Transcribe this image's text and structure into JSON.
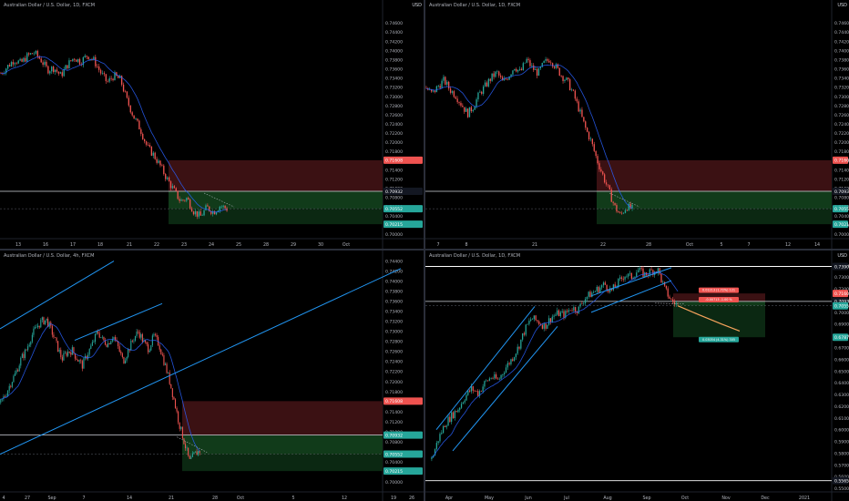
{
  "colors": {
    "background": "#000000",
    "up": "#26a69a",
    "down": "#ef5350",
    "ma": "#2962ff",
    "channel": "#2196f3",
    "stop_zone": "#3b1113",
    "target_zone": "#113b1a",
    "target_zone_dark": "#0b2812",
    "projection": "#f7a35c"
  },
  "currency_label": "USD",
  "chart_data": [
    {
      "type": "candlestick",
      "title": "Australian Dollar / U.S. Dollar, 1D, FXCM",
      "ylim": [
        0.699,
        0.749
      ],
      "y_ticks": [
        "0.74600",
        "0.74400",
        "0.74200",
        "0.74000",
        "0.73800",
        "0.73600",
        "0.73400",
        "0.73200",
        "0.73000",
        "0.72800",
        "0.72600",
        "0.72400",
        "0.72200",
        "0.72000",
        "0.71800",
        "0.71600",
        "0.71400",
        "0.71200",
        "0.71000",
        "0.70800",
        "0.70600",
        "0.70400",
        "0.70200",
        "0.70000",
        "0.69800"
      ],
      "x_ticks": [
        "13",
        "16",
        "17",
        "18",
        "21",
        "22",
        "23",
        "24",
        "25",
        "28",
        "29",
        "30",
        "Oct"
      ],
      "price_tags": [
        {
          "label": "0.71608",
          "value": 0.71608,
          "color": "#ef5350"
        },
        {
          "label": "0.70932",
          "value": 0.70932,
          "color": "#131722"
        },
        {
          "label": "0.70552",
          "value": 0.70552,
          "color": "#26a69a"
        },
        {
          "label": "0.70215",
          "value": 0.70215,
          "color": "#26a69a"
        }
      ],
      "position": {
        "stop": 0.71608,
        "entry": 0.70932,
        "target": 0.70215,
        "last": 0.70552
      },
      "trend": [
        0.735,
        0.7365,
        0.738,
        0.7372,
        0.7388,
        0.7395,
        0.738,
        0.7358,
        0.7362,
        0.7345,
        0.7368,
        0.7385,
        0.7375,
        0.739,
        0.7378,
        0.7352,
        0.733,
        0.7345,
        0.7336,
        0.729,
        0.7255,
        0.7228,
        0.719,
        0.7172,
        0.7148,
        0.712,
        0.7096,
        0.7072,
        0.7078,
        0.705,
        0.7038,
        0.7058,
        0.7048,
        0.7062,
        0.7055
      ]
    },
    {
      "type": "candlestick",
      "title": "Australian Dollar / U.S. Dollar, 1D, FXCM",
      "ylim": [
        0.699,
        0.749
      ],
      "y_ticks": [
        "0.74600",
        "0.74400",
        "0.74200",
        "0.74000",
        "0.73800",
        "0.73600",
        "0.73400",
        "0.73200",
        "0.73000",
        "0.72800",
        "0.72600",
        "0.72400",
        "0.72200",
        "0.72000",
        "0.71800",
        "0.71600",
        "0.71400",
        "0.71200",
        "0.71000",
        "0.70800",
        "0.70600",
        "0.70400",
        "0.70200",
        "0.70000",
        "0.69800"
      ],
      "x_ticks": [
        "7",
        "8",
        "21",
        "22",
        "28",
        "Oct",
        "5",
        "7",
        "12",
        "14"
      ],
      "price_tags": [
        {
          "label": "0.71608",
          "value": 0.71608,
          "color": "#ef5350"
        },
        {
          "label": "0.70932",
          "value": 0.70932,
          "color": "#131722"
        },
        {
          "label": "0.70552",
          "value": 0.70552,
          "color": "#26a69a"
        },
        {
          "label": "0.70215",
          "value": 0.70215,
          "color": "#26a69a"
        }
      ],
      "position": {
        "stop": 0.71608,
        "entry": 0.70932,
        "target": 0.70215,
        "last": 0.70552
      },
      "trend": [
        0.7318,
        0.7305,
        0.7322,
        0.7335,
        0.7315,
        0.7302,
        0.7282,
        0.7262,
        0.7278,
        0.7305,
        0.7322,
        0.734,
        0.7352,
        0.733,
        0.7345,
        0.7365,
        0.7352,
        0.738,
        0.7362,
        0.735,
        0.7372,
        0.7382,
        0.7364,
        0.7345,
        0.7332,
        0.7305,
        0.727,
        0.7232,
        0.7202,
        0.7162,
        0.7128,
        0.7095,
        0.706,
        0.704,
        0.706,
        0.7055
      ]
    },
    {
      "type": "candlestick",
      "title": "Australian Dollar / U.S. Dollar, 4h, FXCM",
      "ylim": [
        0.698,
        0.745
      ],
      "y_ticks": [
        "0.74400",
        "0.74200",
        "0.74000",
        "0.73800",
        "0.73600",
        "0.73400",
        "0.73200",
        "0.73000",
        "0.72800",
        "0.72600",
        "0.72400",
        "0.72200",
        "0.72000",
        "0.71800",
        "0.71600",
        "0.71400",
        "0.71200",
        "0.71000",
        "0.70800",
        "0.70600",
        "0.70400",
        "0.70200",
        "0.70000",
        "0.69800"
      ],
      "x_ticks": [
        "4",
        "27",
        "Sep",
        "7",
        "14",
        "21",
        "28",
        "Oct",
        "5",
        "12",
        "19",
        "26"
      ],
      "price_tags": [
        {
          "label": "0.71608",
          "value": 0.71608,
          "color": "#ef5350"
        },
        {
          "label": "0.70932",
          "value": 0.70932,
          "color": "#26a69a"
        },
        {
          "label": "0.70552",
          "value": 0.70552,
          "color": "#26a69a"
        },
        {
          "label": "0.70215",
          "value": 0.70215,
          "color": "#26a69a"
        }
      ],
      "position": {
        "stop": 0.71608,
        "entry": 0.70932,
        "target": 0.70215,
        "last": 0.70552
      },
      "trend": [
        0.7158,
        0.7175,
        0.7198,
        0.7218,
        0.7245,
        0.7262,
        0.729,
        0.7308,
        0.732,
        0.7322,
        0.73,
        0.7272,
        0.7245,
        0.7258,
        0.7262,
        0.7245,
        0.7232,
        0.7255,
        0.7275,
        0.73,
        0.7282,
        0.7275,
        0.7292,
        0.7268,
        0.724,
        0.7262,
        0.7285,
        0.73,
        0.7278,
        0.7265,
        0.729,
        0.7275,
        0.724,
        0.7205,
        0.7162,
        0.7115,
        0.7078,
        0.704,
        0.7055,
        0.7062
      ]
    },
    {
      "type": "candlestick",
      "title": "Australian Dollar / U.S. Dollar, 1D, FXCM",
      "ylim": [
        0.547,
        0.748
      ],
      "y_ticks": [
        "0.74000",
        "0.73000",
        "0.72000",
        "0.71000",
        "0.70000",
        "0.69000",
        "0.68000",
        "0.67000",
        "0.66000",
        "0.65000",
        "0.64000",
        "0.63000",
        "0.62000",
        "0.61000",
        "0.60000",
        "0.59000",
        "0.58000",
        "0.57000",
        "0.56000",
        "0.55000"
      ],
      "x_ticks": [
        "Apr",
        "May",
        "Jun",
        "Jul",
        "Aug",
        "Sep",
        "Oct",
        "Nov",
        "Dec",
        "2021"
      ],
      "price_tags": [
        {
          "label": "0.73908",
          "value": 0.73908,
          "color": "#131722"
        },
        {
          "label": "0.71608",
          "value": 0.71608,
          "color": "#ef5350"
        },
        {
          "label": "0.70932",
          "value": 0.70932,
          "color": "#131722"
        },
        {
          "label": "0.70552",
          "value": 0.70552,
          "color": "#26a69a"
        },
        {
          "label": "0.67877",
          "value": 0.67877,
          "color": "#26a69a"
        },
        {
          "label": "0.55658",
          "value": 0.55658,
          "color": "#131722"
        }
      ],
      "position": {
        "stop": 0.71608,
        "entry": 0.70932,
        "target": 0.67877,
        "last": 0.70552
      },
      "trend": [
        0.575,
        0.592,
        0.605,
        0.612,
        0.618,
        0.628,
        0.635,
        0.631,
        0.64,
        0.645,
        0.642,
        0.652,
        0.66,
        0.67,
        0.685,
        0.695,
        0.692,
        0.688,
        0.696,
        0.699,
        0.698,
        0.704,
        0.702,
        0.712,
        0.716,
        0.72,
        0.724,
        0.718,
        0.725,
        0.732,
        0.73,
        0.736,
        0.732,
        0.735,
        0.736,
        0.72,
        0.71,
        0.706
      ],
      "box_labels": [
        "0.01213 (1.72%) 121",
        "-0.00713 -1.00 %",
        "0.03054 (4.31%) 305"
      ]
    }
  ]
}
